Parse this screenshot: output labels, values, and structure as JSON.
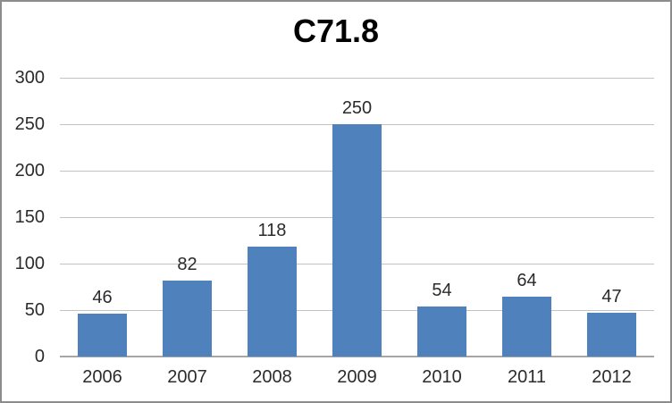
{
  "chart_data": {
    "type": "bar",
    "title": "C71.8",
    "categories": [
      "2006",
      "2007",
      "2008",
      "2009",
      "2010",
      "2011",
      "2012"
    ],
    "values": [
      46,
      82,
      118,
      250,
      54,
      64,
      47
    ],
    "xlabel": "",
    "ylabel": "",
    "ylim": [
      0,
      300
    ],
    "ytick_step": 50,
    "yticks": [
      0,
      50,
      100,
      150,
      200,
      250,
      300
    ],
    "grid": true,
    "legend": "none",
    "data_labels": true,
    "colors": {
      "bar": "#4F81BD",
      "gridline": "#C3C3C3",
      "axis_line": "#A6A6A6",
      "text": "#2b2b2b",
      "title": "#000000",
      "frame_border": "#8C8C8C",
      "background": "#FFFFFF"
    }
  }
}
